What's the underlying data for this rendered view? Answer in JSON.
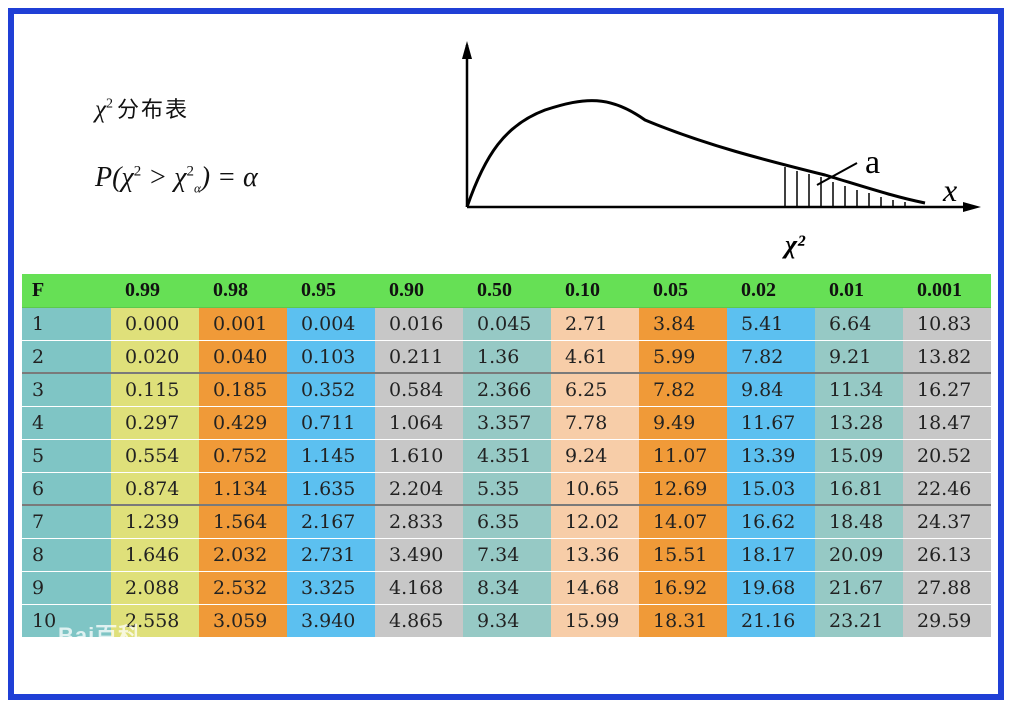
{
  "heading": {
    "symbol": "χ",
    "sup": "2",
    "text": "分布表"
  },
  "formula": {
    "p_open": "P(χ",
    "sup1": "2",
    "gt": " > χ",
    "sup2": "2",
    "sub": "α",
    "rest": ") = α"
  },
  "plot_labels": {
    "a": "a",
    "x": "x",
    "chi": "χ²"
  },
  "table": {
    "header": [
      "F",
      "0.99",
      "0.98",
      "0.95",
      "0.90",
      "0.50",
      "0.10",
      "0.05",
      "0.02",
      "0.01",
      "0.001"
    ],
    "rows": [
      [
        "1",
        "0.000",
        "0.001",
        "0.004",
        "0.016",
        "0.045",
        "2.71",
        "3.84",
        "5.41",
        "6.64",
        "10.83"
      ],
      [
        "2",
        "0.020",
        "0.040",
        "0.103",
        "0.211",
        "1.36",
        "4.61",
        "5.99",
        "7.82",
        "9.21",
        "13.82"
      ],
      [
        "3",
        "0.115",
        "0.185",
        "0.352",
        "0.584",
        "2.366",
        "6.25",
        "7.82",
        "9.84",
        "11.34",
        "16.27"
      ],
      [
        "4",
        "0.297",
        "0.429",
        "0.711",
        "1.064",
        "3.357",
        "7.78",
        "9.49",
        "11.67",
        "13.28",
        "18.47"
      ],
      [
        "5",
        "0.554",
        "0.752",
        "1.145",
        "1.610",
        "4.351",
        "9.24",
        "11.07",
        "13.39",
        "15.09",
        "20.52"
      ],
      [
        "6",
        "0.874",
        "1.134",
        "1.635",
        "2.204",
        "5.35",
        "10.65",
        "12.69",
        "15.03",
        "16.81",
        "22.46"
      ],
      [
        "7",
        "1.239",
        "1.564",
        "2.167",
        "2.833",
        "6.35",
        "12.02",
        "14.07",
        "16.62",
        "18.48",
        "24.37"
      ],
      [
        "8",
        "1.646",
        "2.032",
        "2.731",
        "3.490",
        "7.34",
        "13.36",
        "15.51",
        "18.17",
        "20.09",
        "26.13"
      ],
      [
        "9",
        "2.088",
        "2.532",
        "3.325",
        "4.168",
        "8.34",
        "14.68",
        "16.92",
        "19.68",
        "21.67",
        "27.88"
      ],
      [
        "10",
        "2.558",
        "3.059",
        "3.940",
        "4.865",
        "9.34",
        "15.99",
        "18.31",
        "21.16",
        "23.21",
        "29.59"
      ]
    ]
  },
  "watermark": "Bai百科",
  "colors": {
    "border": "#1f3fd6",
    "header": "#66e055"
  }
}
